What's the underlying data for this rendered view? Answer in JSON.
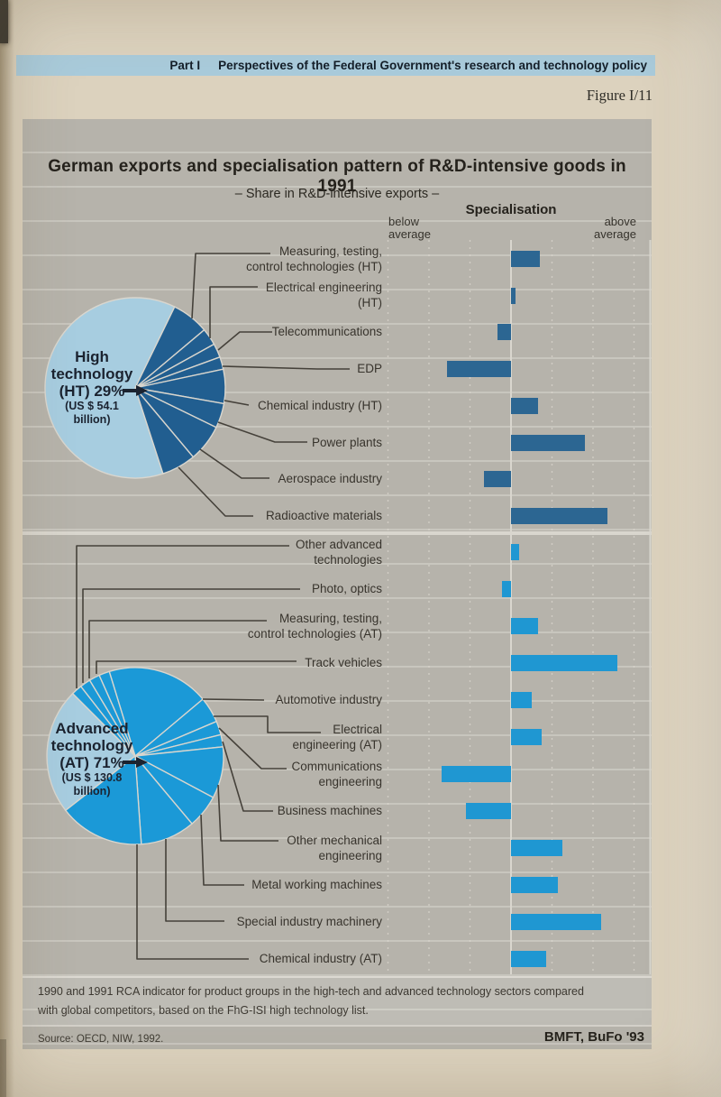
{
  "page": {
    "header_band": {
      "part": "Part I",
      "title": "Perspectives of the Federal Government's research and technology policy"
    },
    "figure_ref": "Figure I/11",
    "figure": {
      "title": "German exports and specialisation pattern of R&D-intensive goods in 1991",
      "subtitle": "– Share in R&D-intensive exports –",
      "spec_header": {
        "title": "Specialisation",
        "below": [
          "below",
          "average"
        ],
        "above": [
          "above",
          "average"
        ]
      },
      "footnote": [
        "1990 and 1991 RCA indicator for product groups in the high-tech and advanced technology sectors compared",
        "with global competitors, based on the FhG-ISI high technology list."
      ],
      "source": "Source: OECD, NIW, 1992.",
      "credit": "BMFT, BuFo '93"
    }
  },
  "colors": {
    "page_bg": "#dcd2be",
    "panel_bg": "#b6b3ab",
    "band_blue": "#a9cbdb",
    "pie_light": "#a7cde0",
    "pie_dark": "#215e90",
    "pie_bright": "#1b99d7",
    "ht_bar": "#2c6692",
    "at_bar": "#1f97d2",
    "connector": "#45413a",
    "grid_white": "#d9d6ce"
  },
  "chart_data": [
    {
      "type": "pie",
      "name": "high-technology",
      "share_pct": 29,
      "value_usd_billion": 54.1,
      "center_label": {
        "lines": [
          "High",
          "technology",
          "(HT) 29%"
        ],
        "sub_lines": [
          "(US $ 54.1",
          "billion)"
        ]
      },
      "start_deg": 64,
      "slices": [
        {
          "label": "Measuring, testing, control technologies (HT)",
          "deg": 24
        },
        {
          "label": "Electrical engineering (HT)",
          "deg": 11
        },
        {
          "label": "Telecommunications",
          "deg": 9
        },
        {
          "label": "EDP",
          "deg": 8
        },
        {
          "label": "Chemical industry (HT)",
          "deg": 22
        },
        {
          "label": "Power plants",
          "deg": 16
        },
        {
          "label": "Aerospace industry",
          "deg": 24
        },
        {
          "label": "Radioactive materials",
          "deg": 22
        }
      ]
    },
    {
      "type": "pie",
      "name": "advanced-technology",
      "share_pct": 71,
      "value_usd_billion": 130.8,
      "center_label": {
        "lines": [
          "Advanced",
          "technology",
          "(AT) 71%"
        ],
        "sub_lines": [
          "(US $ 130.8",
          "billion)"
        ]
      },
      "start_deg": 135,
      "slices": [
        {
          "label": "Other advanced technologies",
          "deg": 7
        },
        {
          "label": "Photo, optics",
          "deg": 7
        },
        {
          "label": "Measuring, testing, control technologies (AT)",
          "deg": 7
        },
        {
          "label": "Track vehicles",
          "deg": 7
        },
        {
          "label": "Automotive industry",
          "deg": 67
        },
        {
          "label": "Electrical engineering (AT)",
          "deg": 17
        },
        {
          "label": "Communications engineering",
          "deg": 9
        },
        {
          "label": "Business machines",
          "deg": 8
        },
        {
          "label": "Other mechanical engineering",
          "deg": 34
        },
        {
          "label": "Metal working machines",
          "deg": 22
        },
        {
          "label": "Special industry machinery",
          "deg": 36
        },
        {
          "label": "Chemical industry (AT)",
          "deg": 56
        }
      ]
    },
    {
      "type": "bar",
      "orientation": "horizontal",
      "title": "Specialisation",
      "axis": {
        "left_label": "below average",
        "right_label": "above average",
        "center": 0,
        "range": [
          -3,
          3
        ],
        "note": "RCA indicator; dashed gridlines, no numeric tick labels shown"
      },
      "rows": [
        {
          "label_lines": [
            "Measuring, testing,",
            "control technologies (HT)"
          ],
          "group": "HT",
          "value": 0.7
        },
        {
          "label_lines": [
            "Electrical engineering",
            "(HT)"
          ],
          "group": "HT",
          "value": 0.1
        },
        {
          "label_lines": [
            "Telecommunications"
          ],
          "group": "HT",
          "value": -0.33
        },
        {
          "label_lines": [
            "EDP"
          ],
          "group": "HT",
          "value": -1.55
        },
        {
          "label_lines": [
            "Chemical industry (HT)"
          ],
          "group": "HT",
          "value": 0.65
        },
        {
          "label_lines": [
            "Power plants"
          ],
          "group": "HT",
          "value": 1.8
        },
        {
          "label_lines": [
            "Aerospace industry"
          ],
          "group": "HT",
          "value": -0.65
        },
        {
          "label_lines": [
            "Radioactive materials"
          ],
          "group": "HT",
          "value": 2.35
        },
        {
          "label_lines": [
            "Other advanced",
            "technologies"
          ],
          "group": "AT",
          "value": 0.2
        },
        {
          "label_lines": [
            "Photo, optics"
          ],
          "group": "AT",
          "value": -0.22
        },
        {
          "label_lines": [
            "Measuring, testing,",
            "control technologies (AT)"
          ],
          "group": "AT",
          "value": 0.65
        },
        {
          "label_lines": [
            "Track vehicles"
          ],
          "group": "AT",
          "value": 2.6
        },
        {
          "label_lines": [
            "Automotive industry"
          ],
          "group": "AT",
          "value": 0.5
        },
        {
          "label_lines": [
            "Electrical",
            "engineering (AT)"
          ],
          "group": "AT",
          "value": 0.75
        },
        {
          "label_lines": [
            "Communications",
            "engineering"
          ],
          "group": "AT",
          "value": -1.7
        },
        {
          "label_lines": [
            "Business machines"
          ],
          "group": "AT",
          "value": -1.1
        },
        {
          "label_lines": [
            "Other mechanical",
            "engineering"
          ],
          "group": "AT",
          "value": 1.25
        },
        {
          "label_lines": [
            "Metal working machines"
          ],
          "group": "AT",
          "value": 1.15
        },
        {
          "label_lines": [
            "Special industry machinery"
          ],
          "group": "AT",
          "value": 2.2
        },
        {
          "label_lines": [
            "Chemical industry (AT)"
          ],
          "group": "AT",
          "value": 0.85
        }
      ]
    }
  ]
}
